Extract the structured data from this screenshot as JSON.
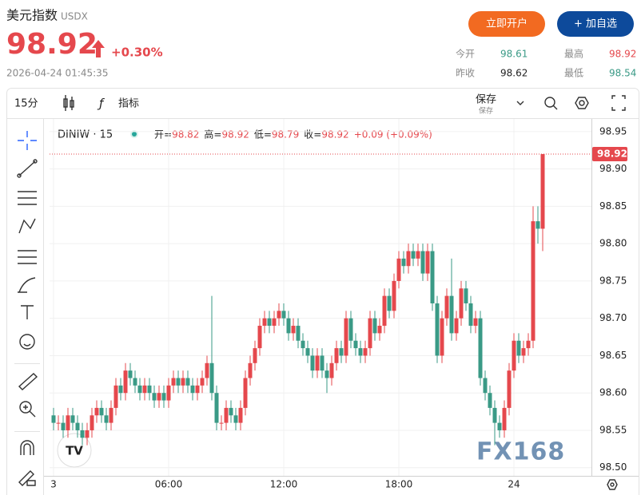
{
  "header": {
    "title": "美元指数",
    "code": "USDX",
    "price": "98.92",
    "change": "+0.30%",
    "time": "2026-04-24 01:45:35",
    "buttons": [
      "立即开户",
      "+ 加自选"
    ],
    "stats": [
      {
        "label": "今开",
        "value": "98.61"
      },
      {
        "label": "最高",
        "value": "98.92"
      },
      {
        "label": "昨收",
        "value": "98.62"
      },
      {
        "label": "最低",
        "value": "98.54"
      }
    ]
  },
  "toolbar": {
    "interval": "15分",
    "indicators": "指标",
    "save": "保存",
    "save_sub": "保存"
  },
  "legend": {
    "symbol": "DINIW · 15",
    "items": [
      {
        "label": "开=",
        "value": "98.82"
      },
      {
        "label": "高=",
        "value": "98.92"
      },
      {
        "label": "低=",
        "value": "98.79"
      },
      {
        "label": "收=",
        "value": "98.92"
      }
    ],
    "change": "+0.09 (+0.09%)"
  },
  "watermark": "FX168",
  "logo": "TV",
  "chart_data": {
    "type": "candlestick",
    "up_color": "#e5484d",
    "down_color": "#3a9a86",
    "categories": [
      "3",
      null,
      null,
      null,
      null,
      null,
      null,
      null,
      null,
      null,
      null,
      null,
      null,
      null,
      null,
      null,
      null,
      null,
      null,
      null,
      null,
      null,
      null,
      null,
      "06:00",
      null,
      null,
      null,
      null,
      null,
      null,
      null,
      null,
      null,
      null,
      null,
      null,
      null,
      null,
      null,
      null,
      null,
      null,
      null,
      null,
      null,
      null,
      null,
      "12:00",
      null,
      null,
      null,
      null,
      null,
      null,
      null,
      null,
      null,
      null,
      null,
      null,
      null,
      null,
      null,
      null,
      null,
      null,
      null,
      null,
      null,
      null,
      null,
      "18:00",
      null,
      null,
      null,
      null,
      null,
      null,
      null,
      null,
      null,
      null,
      null,
      null,
      null,
      null,
      null,
      null,
      null,
      null,
      null,
      null,
      null,
      null,
      null,
      "24",
      null,
      null,
      null,
      null,
      null,
      null
    ],
    "open": [
      98.57,
      98.56,
      98.56,
      98.55,
      98.57,
      98.56,
      98.55,
      98.54,
      98.55,
      98.57,
      98.58,
      98.57,
      98.56,
      98.58,
      98.61,
      98.6,
      98.63,
      98.62,
      98.61,
      98.6,
      98.61,
      98.6,
      98.59,
      98.6,
      98.59,
      98.61,
      98.62,
      98.61,
      98.62,
      98.61,
      98.6,
      98.61,
      98.62,
      98.64,
      98.6,
      98.56,
      98.56,
      98.58,
      98.57,
      98.56,
      98.58,
      98.62,
      98.64,
      98.66,
      98.69,
      98.7,
      98.69,
      98.7,
      98.71,
      98.7,
      98.68,
      98.69,
      98.67,
      98.66,
      98.65,
      98.63,
      98.65,
      98.63,
      98.62,
      98.64,
      98.66,
      98.65,
      98.7,
      98.67,
      98.66,
      98.65,
      98.66,
      98.7,
      98.68,
      98.69,
      98.73,
      98.71,
      98.75,
      98.78,
      98.77,
      98.79,
      98.78,
      98.79,
      98.76,
      98.79,
      98.72,
      98.65,
      98.7,
      98.73,
      98.68,
      98.7,
      98.74,
      98.72,
      98.69,
      98.7,
      98.62,
      98.6,
      98.58,
      98.56,
      98.55,
      98.58,
      98.63,
      98.67,
      98.65,
      98.66,
      98.67,
      98.83,
      98.82
    ],
    "high": [
      98.58,
      98.57,
      98.57,
      98.58,
      98.58,
      98.57,
      98.56,
      98.56,
      98.58,
      98.59,
      98.59,
      98.58,
      98.59,
      98.62,
      98.62,
      98.64,
      98.64,
      98.63,
      98.62,
      98.62,
      98.62,
      98.61,
      98.61,
      98.61,
      98.62,
      98.63,
      98.63,
      98.63,
      98.63,
      98.62,
      98.62,
      98.63,
      98.65,
      98.73,
      98.61,
      98.57,
      98.59,
      98.59,
      98.58,
      98.59,
      98.63,
      98.65,
      98.67,
      98.7,
      98.71,
      98.71,
      98.71,
      98.72,
      98.72,
      98.71,
      98.7,
      98.7,
      98.68,
      98.67,
      98.66,
      98.66,
      98.66,
      98.64,
      98.65,
      98.67,
      98.67,
      98.71,
      98.71,
      98.68,
      98.67,
      98.67,
      98.71,
      98.71,
      98.7,
      98.74,
      98.74,
      98.76,
      98.79,
      98.79,
      98.8,
      98.8,
      98.8,
      98.8,
      98.8,
      98.8,
      98.73,
      98.71,
      98.74,
      98.78,
      98.71,
      98.75,
      98.75,
      98.73,
      98.71,
      98.71,
      98.63,
      98.61,
      98.59,
      98.57,
      98.59,
      98.64,
      98.68,
      98.68,
      98.67,
      98.68,
      98.85,
      98.85,
      98.92
    ],
    "low": [
      98.55,
      98.55,
      98.54,
      98.54,
      98.55,
      98.54,
      98.53,
      98.53,
      98.54,
      98.56,
      98.56,
      98.55,
      98.55,
      98.57,
      98.59,
      98.59,
      98.61,
      98.6,
      98.59,
      98.59,
      98.59,
      98.58,
      98.58,
      98.58,
      98.58,
      98.6,
      98.6,
      98.6,
      98.6,
      98.59,
      98.59,
      98.6,
      98.61,
      98.59,
      98.55,
      98.55,
      98.55,
      98.56,
      98.55,
      98.55,
      98.57,
      98.61,
      98.63,
      98.65,
      98.68,
      98.68,
      98.68,
      98.69,
      98.69,
      98.67,
      98.67,
      98.66,
      98.65,
      98.64,
      98.62,
      98.62,
      98.62,
      98.6,
      98.61,
      98.63,
      98.64,
      98.64,
      98.66,
      98.65,
      98.64,
      98.64,
      98.65,
      98.67,
      98.67,
      98.68,
      98.7,
      98.7,
      98.74,
      98.76,
      98.76,
      98.77,
      98.77,
      98.75,
      98.75,
      98.71,
      98.64,
      98.64,
      98.69,
      98.67,
      98.67,
      98.69,
      98.71,
      98.68,
      98.68,
      98.61,
      98.59,
      98.57,
      98.53,
      98.54,
      98.54,
      98.57,
      98.62,
      98.64,
      98.64,
      98.65,
      98.66,
      98.8,
      98.79
    ],
    "close": [
      98.56,
      98.56,
      98.55,
      98.57,
      98.56,
      98.55,
      98.54,
      98.55,
      98.57,
      98.58,
      98.57,
      98.56,
      98.58,
      98.61,
      98.6,
      98.63,
      98.62,
      98.61,
      98.6,
      98.61,
      98.6,
      98.59,
      98.6,
      98.59,
      98.61,
      98.62,
      98.61,
      98.62,
      98.61,
      98.6,
      98.61,
      98.62,
      98.64,
      98.6,
      98.56,
      98.56,
      98.58,
      98.57,
      98.56,
      98.58,
      98.62,
      98.64,
      98.66,
      98.69,
      98.7,
      98.69,
      98.7,
      98.71,
      98.7,
      98.68,
      98.69,
      98.67,
      98.66,
      98.65,
      98.63,
      98.65,
      98.63,
      98.62,
      98.64,
      98.66,
      98.65,
      98.7,
      98.67,
      98.66,
      98.65,
      98.66,
      98.7,
      98.68,
      98.69,
      98.73,
      98.71,
      98.75,
      98.78,
      98.77,
      98.79,
      98.78,
      98.79,
      98.76,
      98.79,
      98.72,
      98.65,
      98.7,
      98.73,
      98.68,
      98.7,
      98.74,
      98.72,
      98.69,
      98.7,
      98.62,
      98.6,
      98.58,
      98.56,
      98.55,
      98.58,
      98.63,
      98.67,
      98.65,
      98.66,
      98.67,
      98.83,
      98.82,
      98.92
    ],
    "ylim": [
      98.489,
      98.967
    ],
    "yticks": [
      {
        "value": 98.5,
        "label": "98.50"
      },
      98.55,
      {
        "value": 98.6,
        "label": "98.60"
      },
      98.65,
      {
        "value": 98.7,
        "label": "98.70"
      },
      98.75,
      {
        "value": 98.8,
        "label": "98.80"
      },
      98.85,
      {
        "value": 98.9,
        "label": "98.90"
      },
      98.95
    ],
    "grid": true
  }
}
